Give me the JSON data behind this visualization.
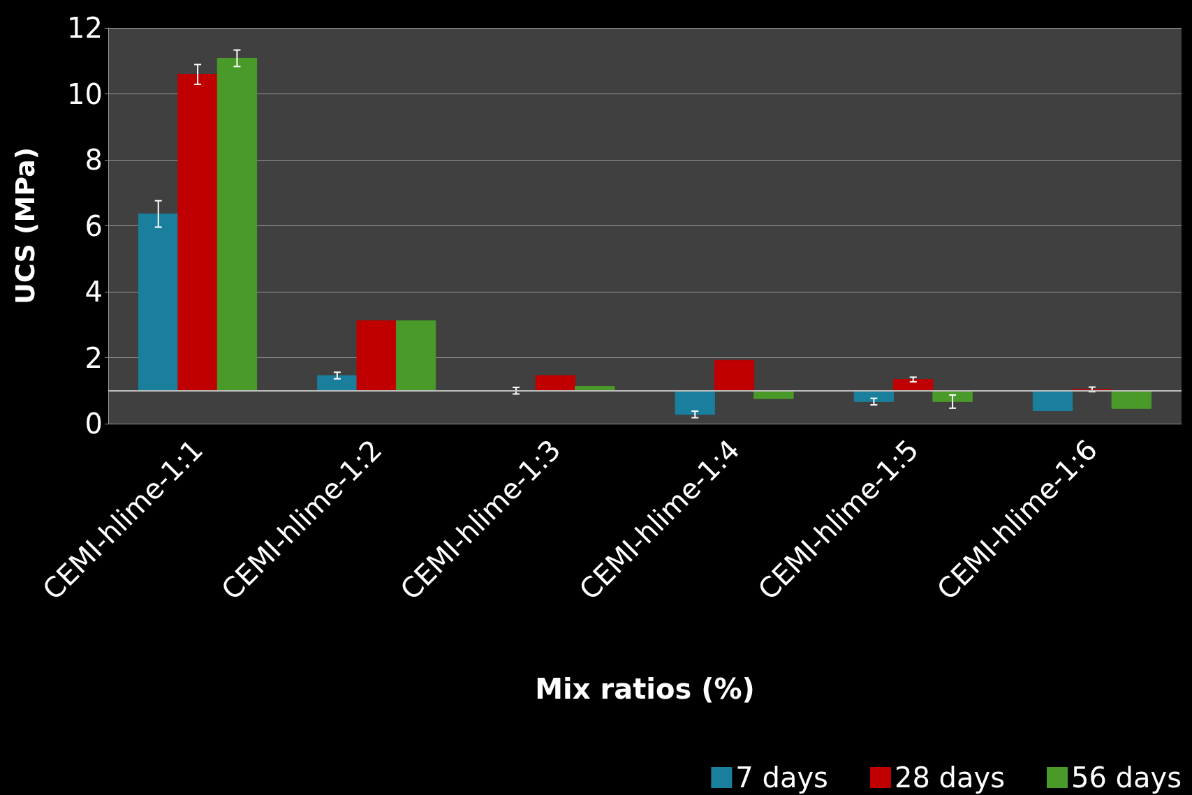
{
  "chart_data": {
    "type": "bar",
    "xlabel": "Mix ratios (%)",
    "ylabel": "UCS (MPa)",
    "categories": [
      "CEMI-hlime-1:1",
      "CEMI-hlime-1:2",
      "CEMI-hlime-1:3",
      "CEMI-hlime-1:4",
      "CEMI-hlime-1:5",
      "CEMI-hlime-1:6"
    ],
    "series": [
      {
        "name": "7 days",
        "color": "#1a7f9c",
        "base": [
          1,
          1,
          1,
          1,
          1,
          1
        ],
        "values": [
          5.36,
          0.46,
          0,
          -0.72,
          -0.33,
          -0.61
        ],
        "errors": [
          0.4,
          0.1,
          0.1,
          0.1,
          0.1,
          null
        ]
      },
      {
        "name": "28 days",
        "color": "#c00000",
        "base": [
          1,
          1,
          1,
          1,
          1,
          1
        ],
        "values": [
          9.59,
          2.12,
          0.46,
          0.92,
          0.34,
          0.04
        ],
        "errors": [
          0.3,
          null,
          null,
          null,
          0.07,
          0.07
        ]
      },
      {
        "name": "56 days",
        "color": "#4a9a2a",
        "base": [
          1,
          1,
          1,
          1,
          1,
          1
        ],
        "values": [
          10.08,
          2.12,
          0.13,
          -0.24,
          -0.33,
          -0.54
        ],
        "errors": [
          0.25,
          null,
          null,
          null,
          0.2,
          null
        ]
      }
    ],
    "ylim": [
      0,
      12
    ],
    "yticks": [
      0,
      2,
      4,
      6,
      8,
      10,
      12
    ],
    "grid": "y",
    "legend": "bottom right",
    "ref_lines": [
      {
        "axis": "y",
        "value": 1,
        "color": "#bfbfbf"
      }
    ]
  }
}
